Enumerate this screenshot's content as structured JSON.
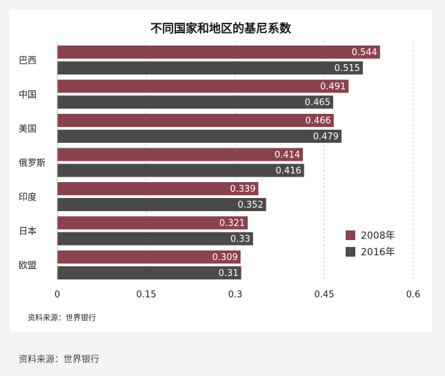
{
  "chart_data": {
    "type": "bar",
    "orientation": "horizontal",
    "title": "不同国家和地区的基尼系数",
    "categories": [
      "巴西",
      "中国",
      "美国",
      "俄罗斯",
      "印度",
      "日本",
      "欧盟"
    ],
    "series": [
      {
        "name": "2008年",
        "color": "#8a424c",
        "values": [
          0.544,
          0.491,
          0.466,
          0.414,
          0.339,
          0.321,
          0.309
        ],
        "labels": [
          "0.544",
          "0.491",
          "0.466",
          "0.414",
          "0.339",
          "0.321",
          "0.309"
        ]
      },
      {
        "name": "2016年",
        "color": "#4a4a4a",
        "values": [
          0.515,
          0.465,
          0.479,
          0.416,
          0.352,
          0.33,
          0.31
        ],
        "labels": [
          "0.515",
          "0.465",
          "0.479",
          "0.416",
          "0.352",
          "0.33",
          "0.31"
        ]
      }
    ],
    "xlim": [
      0,
      0.6
    ],
    "xticks": [
      0,
      0.15,
      0.3,
      0.45,
      0.6
    ],
    "xtick_labels": [
      "0",
      "0.15",
      "0.3",
      "0.45",
      "0.6"
    ],
    "grid": "vertical dashed",
    "legend_position": "bottom-right",
    "source_note": "资料来源：世界银行"
  },
  "outer_source": "资料来源：世界银行"
}
